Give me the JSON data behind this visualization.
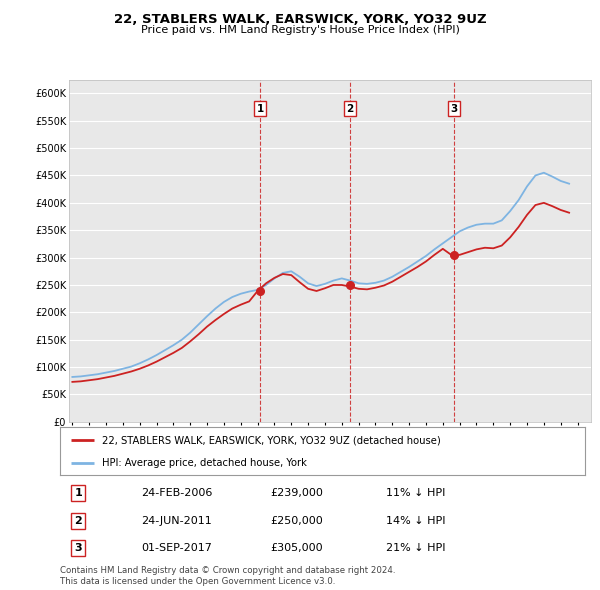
{
  "title": "22, STABLERS WALK, EARSWICK, YORK, YO32 9UZ",
  "subtitle": "Price paid vs. HM Land Registry's House Price Index (HPI)",
  "ylim": [
    0,
    625000
  ],
  "yticks": [
    0,
    50000,
    100000,
    150000,
    200000,
    250000,
    300000,
    350000,
    400000,
    450000,
    500000,
    550000,
    600000
  ],
  "ytick_labels": [
    "£0",
    "£50K",
    "£100K",
    "£150K",
    "£200K",
    "£250K",
    "£300K",
    "£350K",
    "£400K",
    "£450K",
    "£500K",
    "£550K",
    "£600K"
  ],
  "xlim_start": 1994.8,
  "xlim_end": 2025.8,
  "plot_bg_color": "#e8e8e8",
  "grid_color": "#ffffff",
  "hpi_color": "#7eb4e2",
  "price_color": "#cc2222",
  "purchase_dates": [
    2006.15,
    2011.48,
    2017.67
  ],
  "purchase_prices": [
    239000,
    250000,
    305000
  ],
  "purchase_labels": [
    "1",
    "2",
    "3"
  ],
  "purchase_date_strs": [
    "24-FEB-2006",
    "24-JUN-2011",
    "01-SEP-2017"
  ],
  "purchase_pct": [
    "11%",
    "14%",
    "21%"
  ],
  "legend_label_price": "22, STABLERS WALK, EARSWICK, YORK, YO32 9UZ (detached house)",
  "legend_label_hpi": "HPI: Average price, detached house, York",
  "footer": "Contains HM Land Registry data © Crown copyright and database right 2024.\nThis data is licensed under the Open Government Licence v3.0.",
  "hpi_x": [
    1995,
    1995.5,
    1996,
    1996.5,
    1997,
    1997.5,
    1998,
    1998.5,
    1999,
    1999.5,
    2000,
    2000.5,
    2001,
    2001.5,
    2002,
    2002.5,
    2003,
    2003.5,
    2004,
    2004.5,
    2005,
    2005.5,
    2006,
    2006.5,
    2007,
    2007.5,
    2008,
    2008.5,
    2009,
    2009.5,
    2010,
    2010.5,
    2011,
    2011.5,
    2012,
    2012.5,
    2013,
    2013.5,
    2014,
    2014.5,
    2015,
    2015.5,
    2016,
    2016.5,
    2017,
    2017.5,
    2018,
    2018.5,
    2019,
    2019.5,
    2020,
    2020.5,
    2021,
    2021.5,
    2022,
    2022.5,
    2023,
    2023.5,
    2024,
    2024.5
  ],
  "hpi_y": [
    82000,
    83000,
    85000,
    87000,
    90000,
    93000,
    97000,
    101000,
    107000,
    114000,
    122000,
    131000,
    140000,
    150000,
    163000,
    178000,
    193000,
    207000,
    219000,
    228000,
    234000,
    238000,
    241000,
    250000,
    262000,
    272000,
    275000,
    265000,
    253000,
    248000,
    252000,
    258000,
    262000,
    258000,
    253000,
    252000,
    254000,
    258000,
    265000,
    274000,
    283000,
    293000,
    303000,
    315000,
    326000,
    337000,
    348000,
    355000,
    360000,
    362000,
    362000,
    368000,
    385000,
    405000,
    430000,
    450000,
    455000,
    448000,
    440000,
    435000
  ],
  "price_x": [
    1995,
    1995.5,
    1996,
    1996.5,
    1997,
    1997.5,
    1998,
    1998.5,
    1999,
    1999.5,
    2000,
    2000.5,
    2001,
    2001.5,
    2002,
    2002.5,
    2003,
    2003.5,
    2004,
    2004.5,
    2005,
    2005.5,
    2006,
    2006.5,
    2007,
    2007.5,
    2008,
    2008.5,
    2009,
    2009.5,
    2010,
    2010.5,
    2011,
    2011.5,
    2012,
    2012.5,
    2013,
    2013.5,
    2014,
    2014.5,
    2015,
    2015.5,
    2016,
    2016.5,
    2017,
    2017.5,
    2018,
    2018.5,
    2019,
    2019.5,
    2020,
    2020.5,
    2021,
    2021.5,
    2022,
    2022.5,
    2023,
    2023.5,
    2024,
    2024.5
  ],
  "price_y": [
    73000,
    74000,
    76000,
    78000,
    81000,
    84000,
    88000,
    92000,
    97000,
    103000,
    110000,
    118000,
    126000,
    135000,
    147000,
    160000,
    174000,
    186000,
    197000,
    207000,
    214000,
    220000,
    239000,
    253000,
    263000,
    270000,
    268000,
    255000,
    243000,
    239000,
    244000,
    250000,
    250000,
    247000,
    243000,
    242000,
    245000,
    249000,
    256000,
    265000,
    274000,
    283000,
    293000,
    305000,
    316000,
    305000,
    305000,
    310000,
    315000,
    318000,
    317000,
    322000,
    337000,
    356000,
    378000,
    396000,
    400000,
    394000,
    387000,
    382000
  ]
}
